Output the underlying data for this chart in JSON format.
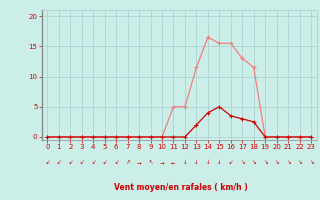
{
  "x_values": [
    0,
    1,
    2,
    3,
    4,
    5,
    6,
    7,
    8,
    9,
    10,
    11,
    12,
    13,
    14,
    15,
    16,
    17,
    18,
    19,
    20,
    21,
    22,
    23
  ],
  "rafales": [
    0,
    0,
    0,
    0,
    0,
    0,
    0,
    0,
    0,
    0,
    0,
    5,
    5,
    11.5,
    16.5,
    15.5,
    15.5,
    13,
    11.5,
    0,
    0,
    0,
    0,
    0
  ],
  "moyen": [
    0,
    0,
    0,
    0,
    0,
    0,
    0,
    0,
    0,
    0,
    0,
    0,
    0,
    2,
    4,
    5,
    3.5,
    3,
    2.5,
    0,
    0,
    0,
    0,
    0
  ],
  "bg_color": "#cceee8",
  "grid_color": "#aacccc",
  "line_color_rafales": "#f08080",
  "line_color_moyen": "#cc0000",
  "xlabel": "Vent moyen/en rafales ( km/h )",
  "xlim": [
    -0.5,
    23.5
  ],
  "ylim": [
    -0.5,
    21
  ],
  "xticks": [
    0,
    1,
    2,
    3,
    4,
    5,
    6,
    7,
    8,
    9,
    10,
    11,
    12,
    13,
    14,
    15,
    16,
    17,
    18,
    19,
    20,
    21,
    22,
    23
  ],
  "yticks": [
    0,
    5,
    10,
    15,
    20
  ],
  "wind_symbols": [
    "↙",
    "↙",
    "↙",
    "↙",
    "↙",
    "↙",
    "↙",
    "↗",
    "→",
    "↖",
    "→",
    "←",
    "↓",
    "↓",
    "↓",
    "↓",
    "↙",
    "↘",
    "↘",
    "↘",
    "↘",
    "↘",
    "↘",
    "↘"
  ]
}
